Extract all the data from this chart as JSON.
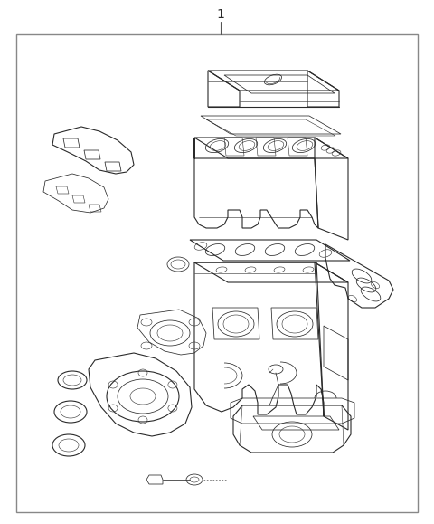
{
  "title": "1",
  "bg_color": "#ffffff",
  "border_color": "#999999",
  "line_color": "#2a2a2a",
  "fig_width": 4.8,
  "fig_height": 5.79,
  "dpi": 100,
  "lw_main": 0.8,
  "lw_detail": 0.55,
  "lw_thin": 0.4
}
